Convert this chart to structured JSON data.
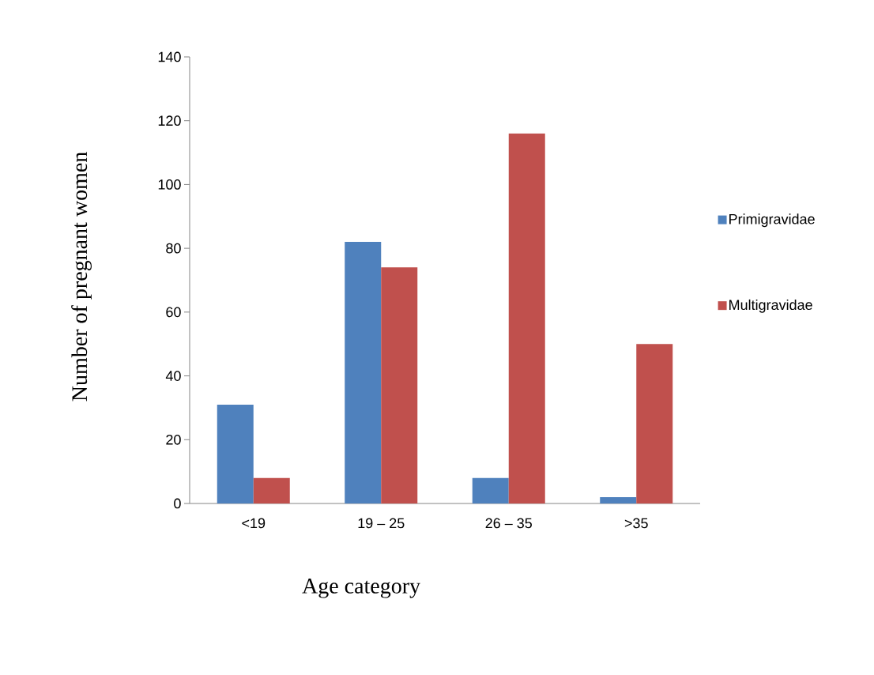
{
  "chart_data": {
    "type": "bar",
    "xlabel": "Age category",
    "ylabel": "Number of pregnant women",
    "categories": [
      "<19",
      "19 – 25",
      "26 – 35",
      ">35"
    ],
    "series": [
      {
        "name": "Primigravidae",
        "color": "#4f81bd",
        "values": [
          31,
          82,
          8,
          2
        ]
      },
      {
        "name": "Multigravidae",
        "color": "#c0504d",
        "values": [
          8,
          74,
          116,
          50
        ]
      }
    ],
    "ylim": [
      0,
      140
    ],
    "yticks": [
      0,
      20,
      40,
      60,
      80,
      100,
      120,
      140
    ],
    "legend": "right"
  }
}
